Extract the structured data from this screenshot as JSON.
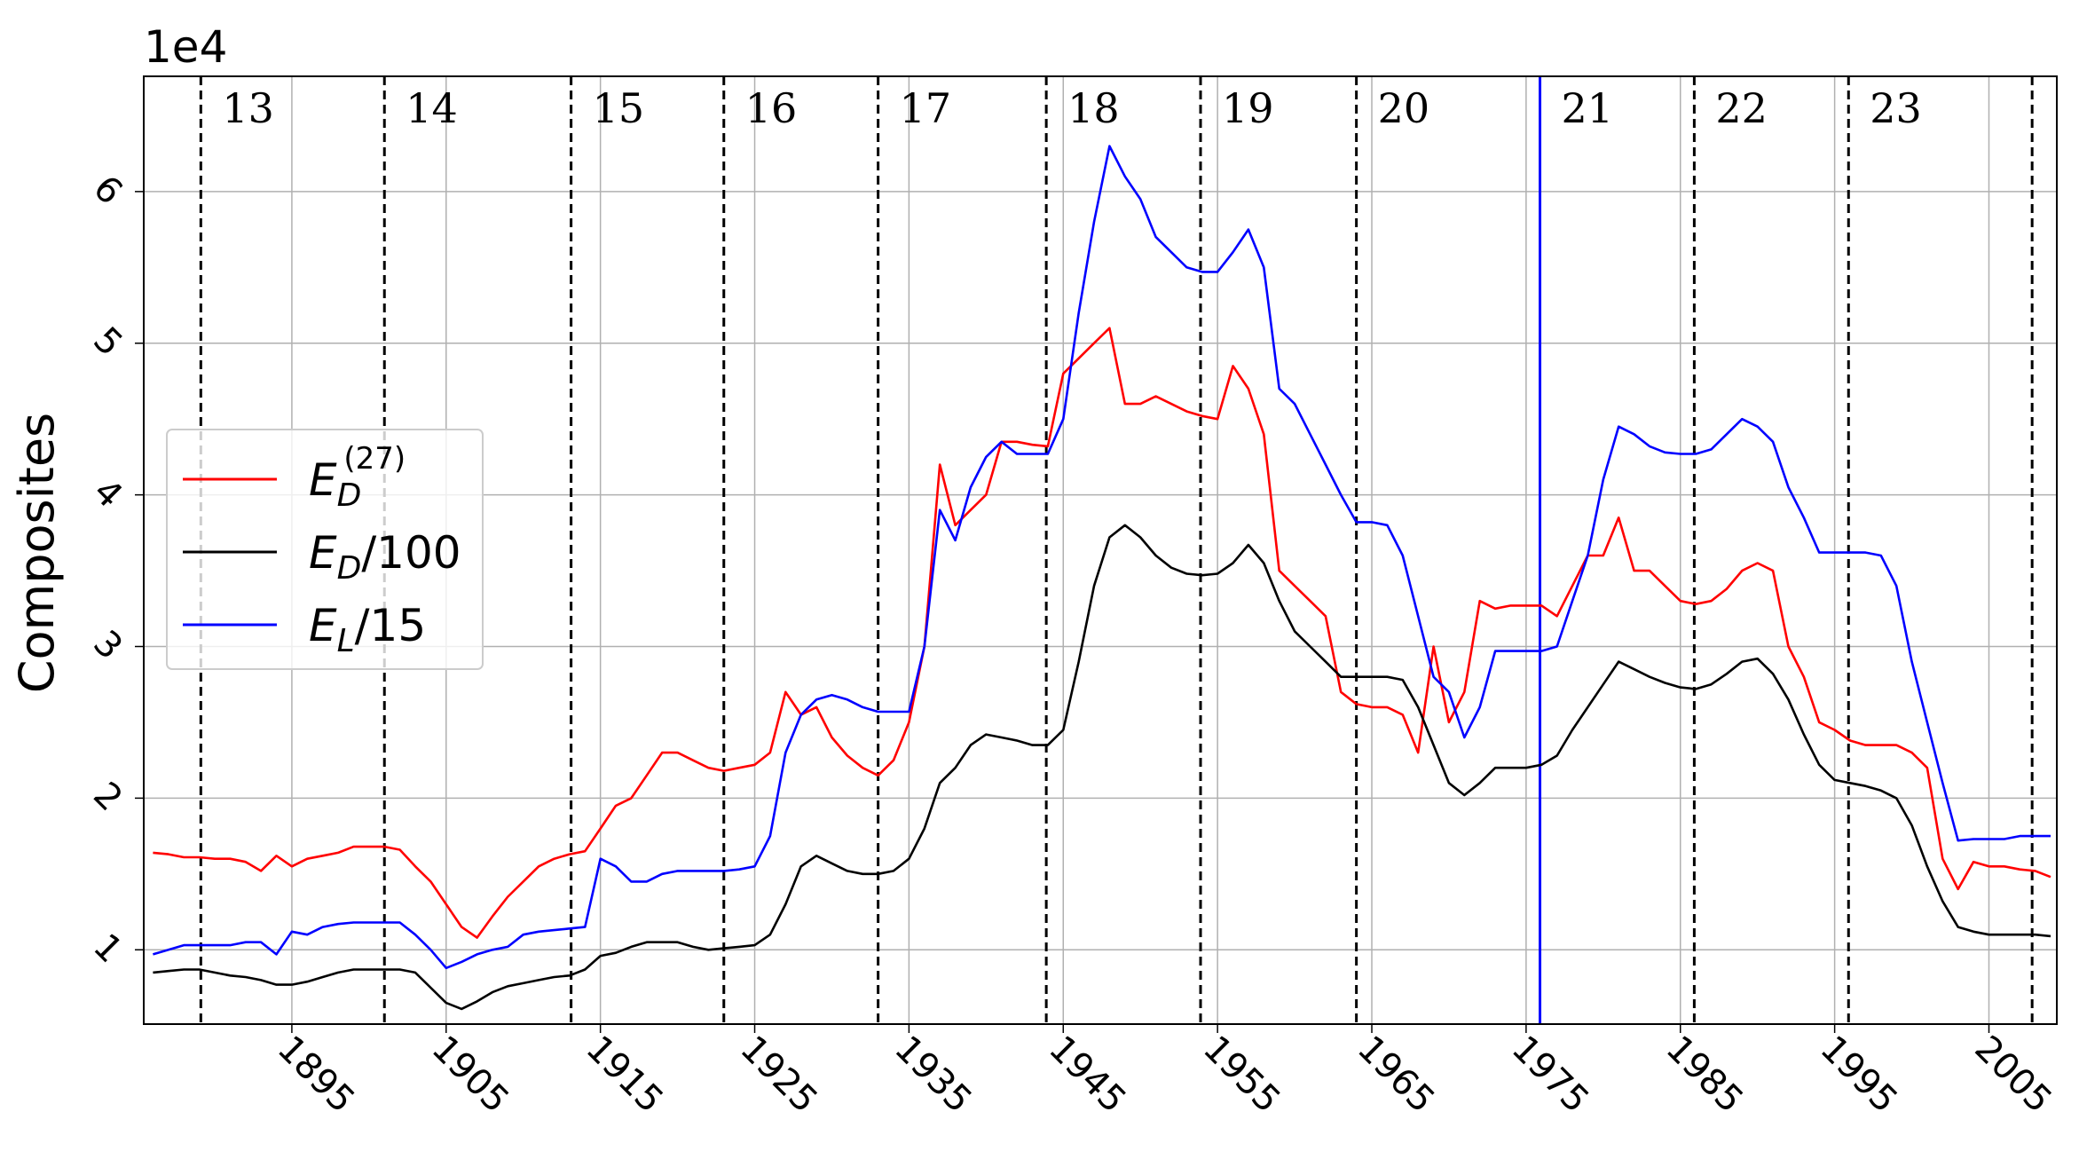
{
  "chart_data": {
    "type": "line",
    "offset_label": "1e4",
    "ylabel": "Composites",
    "xlim": [
      1885.4,
      2009.4
    ],
    "ylim": [
      0.51,
      6.76
    ],
    "xticks": [
      1895,
      1905,
      1915,
      1925,
      1935,
      1945,
      1955,
      1965,
      1975,
      1985,
      1995,
      2005
    ],
    "yticks": [
      1,
      2,
      3,
      4,
      5,
      6
    ],
    "grid": true,
    "legend": "left",
    "cycle_labels": [
      "13",
      "14",
      "15",
      "16",
      "17",
      "18",
      "19",
      "20",
      "21",
      "22",
      "23"
    ],
    "vlines": [
      {
        "x": 1889.1,
        "color": "#000000",
        "dashed": true
      },
      {
        "x": 1901.0,
        "color": "#000000",
        "dashed": true
      },
      {
        "x": 1913.1,
        "color": "#000000",
        "dashed": true
      },
      {
        "x": 1923.0,
        "color": "#000000",
        "dashed": true
      },
      {
        "x": 1933.0,
        "color": "#000000",
        "dashed": true
      },
      {
        "x": 1943.9,
        "color": "#000000",
        "dashed": true
      },
      {
        "x": 1953.9,
        "color": "#000000",
        "dashed": true
      },
      {
        "x": 1964.0,
        "color": "#000000",
        "dashed": true
      },
      {
        "x": 1975.9,
        "color": "#0000ff",
        "dashed": false
      },
      {
        "x": 1985.9,
        "color": "#000000",
        "dashed": true
      },
      {
        "x": 1995.9,
        "color": "#000000",
        "dashed": true
      },
      {
        "x": 2007.8,
        "color": "#000000",
        "dashed": true
      }
    ],
    "x": [
      1886,
      1887,
      1888,
      1889,
      1890,
      1891,
      1892,
      1893,
      1894,
      1895,
      1896,
      1897,
      1898,
      1899,
      1900,
      1901,
      1902,
      1903,
      1904,
      1905,
      1906,
      1907,
      1908,
      1909,
      1910,
      1911,
      1912,
      1913,
      1914,
      1915,
      1916,
      1917,
      1918,
      1919,
      1920,
      1921,
      1922,
      1923,
      1924,
      1925,
      1926,
      1927,
      1928,
      1929,
      1930,
      1931,
      1932,
      1933,
      1934,
      1935,
      1936,
      1937,
      1938,
      1939,
      1940,
      1941,
      1942,
      1943,
      1944,
      1945,
      1946,
      1947,
      1948,
      1949,
      1950,
      1951,
      1952,
      1953,
      1954,
      1955,
      1956,
      1957,
      1958,
      1959,
      1960,
      1961,
      1962,
      1963,
      1964,
      1965,
      1966,
      1967,
      1968,
      1969,
      1970,
      1971,
      1972,
      1973,
      1974,
      1975,
      1976,
      1977,
      1978,
      1979,
      1980,
      1981,
      1982,
      1983,
      1984,
      1985,
      1986,
      1987,
      1988,
      1989,
      1990,
      1991,
      1992,
      1993,
      1994,
      1995,
      1996,
      1997,
      1998,
      1999,
      2000,
      2001,
      2002,
      2003,
      2004,
      2005,
      2006,
      2007,
      2008,
      2009
    ],
    "series": [
      {
        "name": "ED(27)",
        "color": "#ff0000",
        "values": [
          1.64,
          1.63,
          1.61,
          1.61,
          1.6,
          1.6,
          1.58,
          1.52,
          1.62,
          1.55,
          1.6,
          1.62,
          1.64,
          1.68,
          1.68,
          1.68,
          1.66,
          1.55,
          1.45,
          1.3,
          1.15,
          1.08,
          1.22,
          1.35,
          1.45,
          1.55,
          1.6,
          1.63,
          1.65,
          1.8,
          1.95,
          2.0,
          2.15,
          2.3,
          2.3,
          2.25,
          2.2,
          2.18,
          2.2,
          2.22,
          2.3,
          2.7,
          2.55,
          2.6,
          2.4,
          2.28,
          2.2,
          2.15,
          2.25,
          2.5,
          3.0,
          4.2,
          3.8,
          3.9,
          4.0,
          4.35,
          4.35,
          4.33,
          4.32,
          4.8,
          4.9,
          5.0,
          5.1,
          4.6,
          4.6,
          4.65,
          4.6,
          4.55,
          4.52,
          4.5,
          4.85,
          4.7,
          4.4,
          3.5,
          3.4,
          3.3,
          3.2,
          2.7,
          2.62,
          2.6,
          2.6,
          2.55,
          2.3,
          3.0,
          2.5,
          2.7,
          3.3,
          3.25,
          3.27,
          3.27,
          3.27,
          3.2,
          3.4,
          3.6,
          3.6,
          3.85,
          3.5,
          3.5,
          3.4,
          3.3,
          3.28,
          3.3,
          3.38,
          3.5,
          3.55,
          3.5,
          3.0,
          2.8,
          2.5,
          2.45,
          2.38,
          2.35,
          2.35,
          2.35,
          2.3,
          2.2,
          1.6,
          1.4,
          1.58,
          1.55,
          1.55,
          1.53,
          1.52,
          1.48
        ]
      },
      {
        "name": "ED/100",
        "color": "#000000",
        "values": [
          0.85,
          0.86,
          0.87,
          0.87,
          0.85,
          0.83,
          0.82,
          0.8,
          0.77,
          0.77,
          0.79,
          0.82,
          0.85,
          0.87,
          0.87,
          0.87,
          0.87,
          0.85,
          0.75,
          0.65,
          0.61,
          0.66,
          0.72,
          0.76,
          0.78,
          0.8,
          0.82,
          0.83,
          0.87,
          0.96,
          0.98,
          1.02,
          1.05,
          1.05,
          1.05,
          1.02,
          1.0,
          1.01,
          1.02,
          1.03,
          1.1,
          1.3,
          1.55,
          1.62,
          1.57,
          1.52,
          1.5,
          1.5,
          1.52,
          1.6,
          1.8,
          2.1,
          2.2,
          2.35,
          2.42,
          2.4,
          2.38,
          2.35,
          2.35,
          2.45,
          2.9,
          3.4,
          3.72,
          3.8,
          3.72,
          3.6,
          3.52,
          3.48,
          3.47,
          3.48,
          3.55,
          3.67,
          3.55,
          3.3,
          3.1,
          3.0,
          2.9,
          2.8,
          2.8,
          2.8,
          2.8,
          2.78,
          2.6,
          2.35,
          2.1,
          2.02,
          2.1,
          2.2,
          2.2,
          2.2,
          2.22,
          2.28,
          2.45,
          2.6,
          2.75,
          2.9,
          2.85,
          2.8,
          2.76,
          2.73,
          2.72,
          2.75,
          2.82,
          2.9,
          2.92,
          2.82,
          2.65,
          2.42,
          2.22,
          2.12,
          2.1,
          2.08,
          2.05,
          2.0,
          1.82,
          1.55,
          1.32,
          1.15,
          1.12,
          1.1,
          1.1,
          1.1,
          1.1,
          1.09
        ]
      },
      {
        "name": "EL/15",
        "color": "#0000ff",
        "values": [
          0.97,
          1.0,
          1.03,
          1.03,
          1.03,
          1.03,
          1.05,
          1.05,
          0.97,
          1.12,
          1.1,
          1.15,
          1.17,
          1.18,
          1.18,
          1.18,
          1.18,
          1.1,
          1.0,
          0.88,
          0.92,
          0.97,
          1.0,
          1.02,
          1.1,
          1.12,
          1.13,
          1.14,
          1.15,
          1.6,
          1.55,
          1.45,
          1.45,
          1.5,
          1.52,
          1.52,
          1.52,
          1.52,
          1.53,
          1.55,
          1.75,
          2.3,
          2.55,
          2.65,
          2.68,
          2.65,
          2.6,
          2.57,
          2.57,
          2.57,
          3.0,
          3.9,
          3.7,
          4.05,
          4.25,
          4.35,
          4.27,
          4.27,
          4.27,
          4.5,
          5.2,
          5.8,
          6.3,
          6.1,
          5.95,
          5.7,
          5.6,
          5.5,
          5.47,
          5.47,
          5.6,
          5.75,
          5.5,
          4.7,
          4.6,
          4.4,
          4.2,
          4.0,
          3.82,
          3.82,
          3.8,
          3.6,
          3.2,
          2.8,
          2.7,
          2.4,
          2.6,
          2.97,
          2.97,
          2.97,
          2.97,
          3.0,
          3.3,
          3.6,
          4.1,
          4.45,
          4.4,
          4.32,
          4.28,
          4.27,
          4.27,
          4.3,
          4.4,
          4.5,
          4.45,
          4.35,
          4.05,
          3.85,
          3.62,
          3.62,
          3.62,
          3.62,
          3.6,
          3.4,
          2.9,
          2.5,
          2.1,
          1.72,
          1.73,
          1.73,
          1.73,
          1.75,
          1.75,
          1.75
        ]
      }
    ]
  }
}
